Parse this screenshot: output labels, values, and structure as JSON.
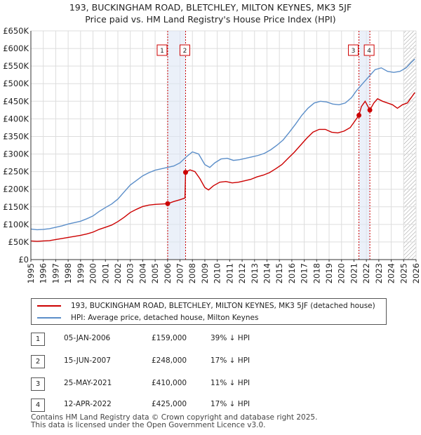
{
  "title_line1": "193, BUCKINGHAM ROAD, BLETCHLEY, MILTON KEYNES, MK3 5JF",
  "title_line2": "Price paid vs. HM Land Registry's House Price Index (HPI)",
  "chart_data": {
    "type": "line",
    "ylim": [
      0,
      650000
    ],
    "xlim": [
      1995,
      2026
    ],
    "y_ticks": [
      0,
      50000,
      100000,
      150000,
      200000,
      250000,
      300000,
      350000,
      400000,
      450000,
      500000,
      550000,
      600000,
      650000
    ],
    "y_tick_labels": [
      "£0",
      "£50K",
      "£100K",
      "£150K",
      "£200K",
      "£250K",
      "£300K",
      "£350K",
      "£400K",
      "£450K",
      "£500K",
      "£550K",
      "£600K",
      "£650K"
    ],
    "x_ticks": [
      1995,
      1996,
      1997,
      1998,
      1999,
      2000,
      2001,
      2002,
      2003,
      2004,
      2005,
      2006,
      2007,
      2008,
      2009,
      2010,
      2011,
      2012,
      2013,
      2014,
      2015,
      2016,
      2017,
      2018,
      2019,
      2020,
      2021,
      2022,
      2023,
      2024,
      2025,
      2026
    ],
    "x_tick_labels": [
      "1995",
      "1996",
      "1997",
      "1998",
      "1999",
      "2000",
      "2001",
      "2002",
      "2003",
      "2004",
      "2005",
      "2006",
      "2007",
      "2008",
      "2009",
      "2010",
      "2011",
      "2012",
      "2013",
      "2014",
      "2015",
      "2016",
      "2017",
      "2018",
      "2019",
      "2020",
      "2021",
      "2022",
      "2023",
      "2024",
      "2025",
      "2026"
    ],
    "grid": true,
    "hatch_from": 2025.0,
    "series": [
      {
        "name": "193, BUCKINGHAM ROAD, BLETCHLEY, MILTON KEYNES, MK3 5JF (detached house)",
        "color": "#cc0000",
        "points": [
          [
            1995.0,
            53000
          ],
          [
            1995.5,
            52000
          ],
          [
            1996.0,
            53000
          ],
          [
            1996.5,
            54000
          ],
          [
            1997.0,
            57000
          ],
          [
            1997.5,
            60000
          ],
          [
            1998.0,
            63000
          ],
          [
            1998.5,
            66000
          ],
          [
            1999.0,
            69000
          ],
          [
            1999.5,
            73000
          ],
          [
            2000.0,
            78000
          ],
          [
            2000.5,
            86000
          ],
          [
            2001.0,
            92000
          ],
          [
            2001.5,
            98000
          ],
          [
            2002.0,
            108000
          ],
          [
            2002.5,
            120000
          ],
          [
            2003.0,
            134000
          ],
          [
            2003.5,
            143000
          ],
          [
            2004.0,
            151000
          ],
          [
            2004.5,
            155000
          ],
          [
            2005.0,
            157000
          ],
          [
            2005.5,
            158000
          ],
          [
            2006.01,
            159000
          ],
          [
            2006.5,
            165000
          ],
          [
            2007.0,
            170000
          ],
          [
            2007.4,
            175000
          ],
          [
            2007.45,
            248000
          ],
          [
            2007.8,
            255000
          ],
          [
            2008.2,
            250000
          ],
          [
            2008.6,
            230000
          ],
          [
            2009.0,
            205000
          ],
          [
            2009.3,
            198000
          ],
          [
            2009.7,
            210000
          ],
          [
            2010.2,
            220000
          ],
          [
            2010.7,
            222000
          ],
          [
            2011.2,
            218000
          ],
          [
            2011.7,
            220000
          ],
          [
            2012.2,
            224000
          ],
          [
            2012.7,
            228000
          ],
          [
            2013.2,
            235000
          ],
          [
            2013.7,
            240000
          ],
          [
            2014.2,
            247000
          ],
          [
            2014.7,
            258000
          ],
          [
            2015.2,
            270000
          ],
          [
            2015.7,
            288000
          ],
          [
            2016.2,
            305000
          ],
          [
            2016.7,
            325000
          ],
          [
            2017.2,
            345000
          ],
          [
            2017.7,
            362000
          ],
          [
            2018.2,
            370000
          ],
          [
            2018.7,
            370000
          ],
          [
            2019.2,
            362000
          ],
          [
            2019.7,
            360000
          ],
          [
            2020.2,
            365000
          ],
          [
            2020.7,
            375000
          ],
          [
            2021.1,
            395000
          ],
          [
            2021.4,
            410000
          ],
          [
            2021.6,
            435000
          ],
          [
            2021.9,
            450000
          ],
          [
            2022.28,
            425000
          ],
          [
            2022.6,
            445000
          ],
          [
            2022.9,
            457000
          ],
          [
            2023.3,
            450000
          ],
          [
            2023.7,
            445000
          ],
          [
            2024.1,
            440000
          ],
          [
            2024.5,
            430000
          ],
          [
            2024.9,
            440000
          ],
          [
            2025.3,
            445000
          ],
          [
            2025.7,
            465000
          ],
          [
            2025.9,
            475000
          ]
        ]
      },
      {
        "name": "HPI: Average price, detached house, Milton Keynes",
        "color": "#5b8ec9",
        "points": [
          [
            1995.0,
            87000
          ],
          [
            1995.5,
            85000
          ],
          [
            1996.0,
            86000
          ],
          [
            1996.5,
            88000
          ],
          [
            1997.0,
            92000
          ],
          [
            1997.5,
            96000
          ],
          [
            1998.0,
            101000
          ],
          [
            1998.5,
            105000
          ],
          [
            1999.0,
            109000
          ],
          [
            1999.5,
            116000
          ],
          [
            2000.0,
            124000
          ],
          [
            2000.5,
            137000
          ],
          [
            2001.0,
            148000
          ],
          [
            2001.5,
            158000
          ],
          [
            2002.0,
            172000
          ],
          [
            2002.5,
            192000
          ],
          [
            2003.0,
            212000
          ],
          [
            2003.5,
            225000
          ],
          [
            2004.0,
            238000
          ],
          [
            2004.5,
            247000
          ],
          [
            2005.0,
            254000
          ],
          [
            2005.5,
            258000
          ],
          [
            2006.0,
            262000
          ],
          [
            2006.5,
            266000
          ],
          [
            2007.0,
            275000
          ],
          [
            2007.5,
            292000
          ],
          [
            2008.0,
            306000
          ],
          [
            2008.5,
            300000
          ],
          [
            2009.0,
            270000
          ],
          [
            2009.4,
            262000
          ],
          [
            2009.8,
            275000
          ],
          [
            2010.3,
            286000
          ],
          [
            2010.8,
            288000
          ],
          [
            2011.3,
            282000
          ],
          [
            2011.8,
            284000
          ],
          [
            2012.3,
            288000
          ],
          [
            2012.8,
            292000
          ],
          [
            2013.3,
            296000
          ],
          [
            2013.8,
            302000
          ],
          [
            2014.3,
            312000
          ],
          [
            2014.8,
            325000
          ],
          [
            2015.3,
            340000
          ],
          [
            2015.8,
            362000
          ],
          [
            2016.3,
            385000
          ],
          [
            2016.8,
            410000
          ],
          [
            2017.3,
            430000
          ],
          [
            2017.8,
            445000
          ],
          [
            2018.3,
            450000
          ],
          [
            2018.8,
            448000
          ],
          [
            2019.3,
            442000
          ],
          [
            2019.8,
            440000
          ],
          [
            2020.3,
            445000
          ],
          [
            2020.8,
            460000
          ],
          [
            2021.2,
            480000
          ],
          [
            2021.7,
            500000
          ],
          [
            2022.2,
            520000
          ],
          [
            2022.7,
            540000
          ],
          [
            2023.2,
            545000
          ],
          [
            2023.7,
            535000
          ],
          [
            2024.2,
            532000
          ],
          [
            2024.7,
            535000
          ],
          [
            2025.2,
            545000
          ],
          [
            2025.6,
            560000
          ],
          [
            2025.9,
            570000
          ]
        ]
      }
    ],
    "transactions": [
      {
        "label": "1",
        "x": 2006.01,
        "y": 159000
      },
      {
        "label": "2",
        "x": 2007.45,
        "y": 248000
      },
      {
        "label": "3",
        "x": 2021.4,
        "y": 410000
      },
      {
        "label": "4",
        "x": 2022.28,
        "y": 425000
      }
    ],
    "shaded_ranges": [
      [
        2006.01,
        2007.45
      ],
      [
        2021.4,
        2022.28
      ]
    ]
  },
  "legend": {
    "red_label": "193, BUCKINGHAM ROAD, BLETCHLEY, MILTON KEYNES, MK3 5JF (detached house)",
    "blue_label": "HPI: Average price, detached house, Milton Keynes",
    "red_color": "#cc0000",
    "blue_color": "#5b8ec9"
  },
  "transactions_table": [
    {
      "num": "1",
      "date": "05-JAN-2006",
      "price": "£159,000",
      "hpi": "39% ↓ HPI"
    },
    {
      "num": "2",
      "date": "15-JUN-2007",
      "price": "£248,000",
      "hpi": "17% ↓ HPI"
    },
    {
      "num": "3",
      "date": "25-MAY-2021",
      "price": "£410,000",
      "hpi": "11% ↓ HPI"
    },
    {
      "num": "4",
      "date": "12-APR-2022",
      "price": "£425,000",
      "hpi": "17% ↓ HPI"
    }
  ],
  "footer_line1": "Contains HM Land Registry data © Crown copyright and database right 2025.",
  "footer_line2": "This data is licensed under the Open Government Licence v3.0."
}
